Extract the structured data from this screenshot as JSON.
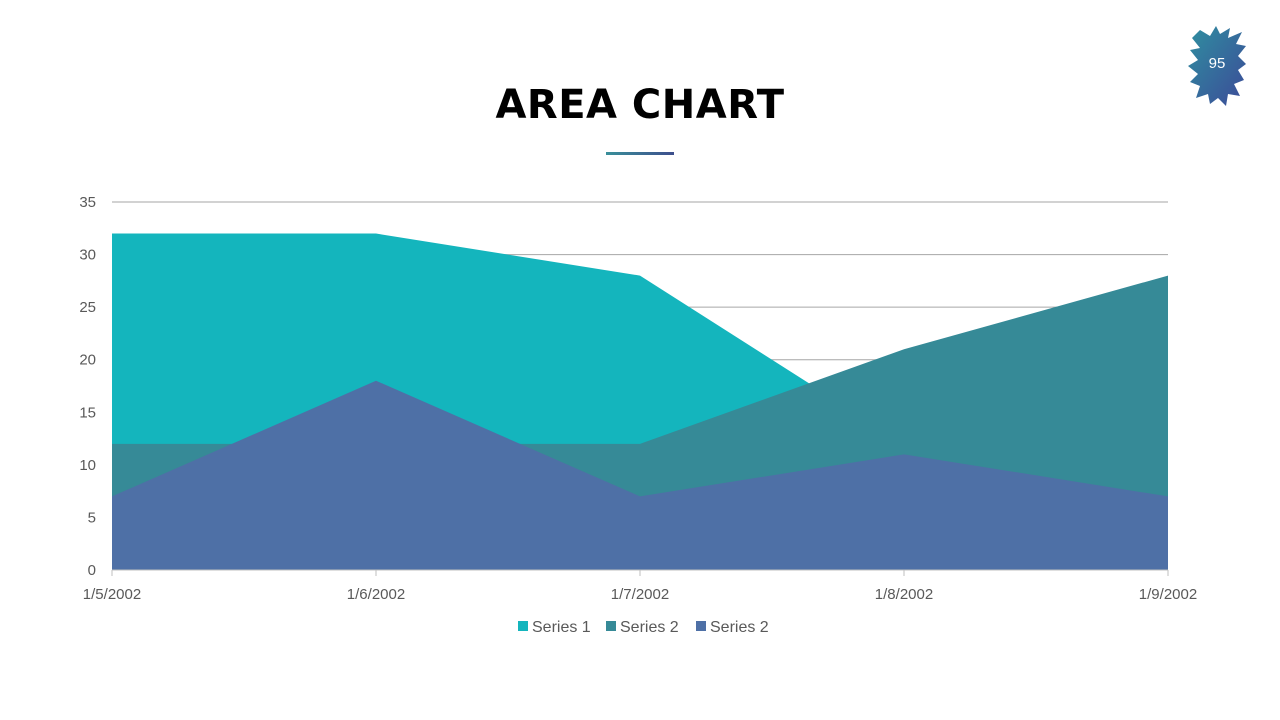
{
  "slide": {
    "title": "AREA CHART",
    "page_number": "95"
  },
  "colors": {
    "series_1": "#14b5bd",
    "series_2a": "#368a97",
    "series_2b": "#4e70a6",
    "gridline": "#a6a6a6",
    "axis_text": "#595959"
  },
  "chart_data": {
    "type": "area",
    "title": "",
    "xlabel": "",
    "ylabel": "",
    "categories": [
      "1/5/2002",
      "1/6/2002",
      "1/7/2002",
      "1/8/2002",
      "1/9/2002"
    ],
    "ylim": [
      0,
      35
    ],
    "yticks": [
      0,
      5,
      10,
      15,
      20,
      25,
      30,
      35
    ],
    "grid": true,
    "legend": "bottom",
    "series": [
      {
        "name": "Series 1",
        "values": [
          32,
          32,
          28,
          12,
          15
        ]
      },
      {
        "name": "Series 2",
        "values": [
          12,
          12,
          12,
          21,
          28
        ]
      },
      {
        "name": "Series 2",
        "values": [
          7,
          18,
          7,
          11,
          7
        ]
      }
    ]
  }
}
